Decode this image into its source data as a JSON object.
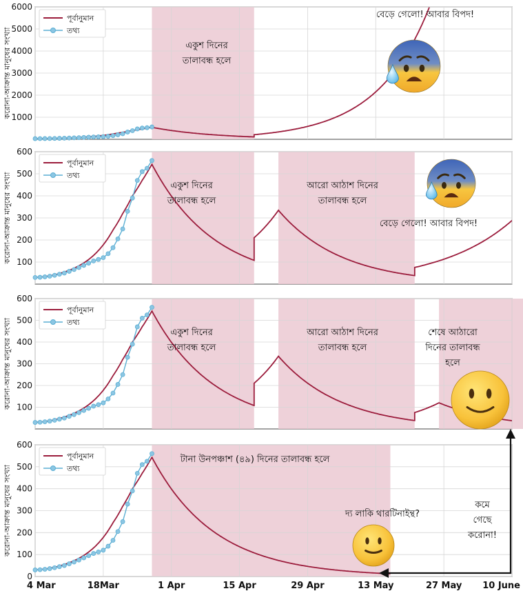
{
  "figure": {
    "x_ticks": [
      "4 Mar",
      "18Mar",
      "1 Apr",
      "15 Apr",
      "29 Apr",
      "13 May",
      "27 May",
      "10 June"
    ],
    "colors": {
      "forecast": "#9b1b3b",
      "data": "#5aaed3",
      "lockdown": "#ebc9d2",
      "grid": "#d6d6d6"
    }
  },
  "chart_data": [
    {
      "type": "line",
      "ylabel": "করোনা-আক্রান্ত মানুষের সংখ্যা",
      "ylim": [
        0,
        6000
      ],
      "yticks": [
        1000,
        2000,
        3000,
        4000,
        5000,
        6000
      ],
      "legend": {
        "forecast": "পূর্বানুমান",
        "data": "তথ্য",
        "position": "top-left"
      },
      "lockdowns": [
        [
          24,
          45
        ]
      ],
      "annotations": [
        {
          "lines": [
            "একুশ দিনের",
            "তালাবন্ধ হলে"
          ]
        },
        {
          "lines": [
            "বেড়ে গেলো! আবার বিপদ!"
          ]
        }
      ],
      "emoji": "worried-face"
    },
    {
      "type": "line",
      "ylabel": "করোনা-আক্রান্ত মানুষের সংখ্যা",
      "ylim": [
        0,
        600
      ],
      "yticks": [
        100,
        200,
        300,
        400,
        500,
        600
      ],
      "legend": {
        "forecast": "পূর্বানুমান",
        "data": "তথ্য",
        "position": "top-left"
      },
      "lockdowns": [
        [
          24,
          45
        ],
        [
          50,
          78
        ]
      ],
      "annotations": [
        {
          "lines": [
            "একুশ দিনের",
            "তালাবন্ধ হলে"
          ]
        },
        {
          "lines": [
            "আরো আঠাশ দিনের",
            "তালাবন্ধ হলে"
          ]
        },
        {
          "lines": [
            "বেড়ে গেলো! আবার বিপদ!"
          ]
        }
      ],
      "emoji": "worried-face"
    },
    {
      "type": "line",
      "ylabel": "করোনা-আক্রান্ত মানুষের সংখ্যা",
      "ylim": [
        0,
        600
      ],
      "yticks": [
        100,
        200,
        300,
        400,
        500,
        600
      ],
      "legend": {
        "forecast": "পূর্বানুমান",
        "data": "তথ্য",
        "position": "top-left"
      },
      "lockdowns": [
        [
          24,
          45
        ],
        [
          50,
          78
        ],
        [
          83,
          101
        ]
      ],
      "annotations": [
        {
          "lines": [
            "একুশ দিনের",
            "তালাবন্ধ হলে"
          ]
        },
        {
          "lines": [
            "আরো আঠাশ দিনের",
            "তালাবন্ধ হলে"
          ]
        },
        {
          "lines": [
            "শেষে আঠারো",
            "দিনের তালাবন্ধ",
            "হলে"
          ]
        }
      ],
      "emoji": "smiling-face"
    },
    {
      "type": "line",
      "ylabel": "করোনা-আক্রান্ত মানুষের সংখ্যা",
      "ylim": [
        0,
        600
      ],
      "yticks": [
        0,
        100,
        200,
        300,
        400,
        500,
        600
      ],
      "legend": {
        "forecast": "পূর্বানুমান",
        "data": "তথ্য",
        "position": "top-left"
      },
      "lockdowns": [
        [
          24,
          73
        ]
      ],
      "annotations": [
        {
          "lines": [
            "টানা উনপঞ্চাশ (৪৯) দিনের তালাবন্ধ হলে"
          ]
        },
        {
          "lines": [
            "দ্য লাকি থারটিনাইন্থ?"
          ]
        },
        {
          "lines": [
            "কমে",
            "গেছে",
            "করোনা!"
          ]
        }
      ],
      "emoji": "slight-smile-face"
    }
  ],
  "series": {
    "observed_days": [
      0,
      1,
      2,
      3,
      4,
      5,
      6,
      7,
      8,
      9,
      10,
      11,
      12,
      13,
      14,
      15,
      16,
      17,
      18,
      19,
      20,
      21,
      22,
      23,
      24
    ],
    "observed_values": [
      30,
      31,
      33,
      36,
      40,
      45,
      50,
      58,
      66,
      75,
      85,
      95,
      105,
      112,
      120,
      138,
      165,
      205,
      250,
      330,
      390,
      470,
      510,
      525,
      560
    ],
    "model_days": [
      0,
      2,
      4,
      6,
      8,
      10,
      12,
      14,
      16,
      18,
      20,
      22,
      24
    ],
    "model_values": [
      30,
      34,
      42,
      55,
      72,
      96,
      130,
      178,
      245,
      320,
      400,
      470,
      543
    ],
    "decay_rate": 0.077,
    "rebound_rate": 0.093,
    "step_after_relief": 1.95
  }
}
